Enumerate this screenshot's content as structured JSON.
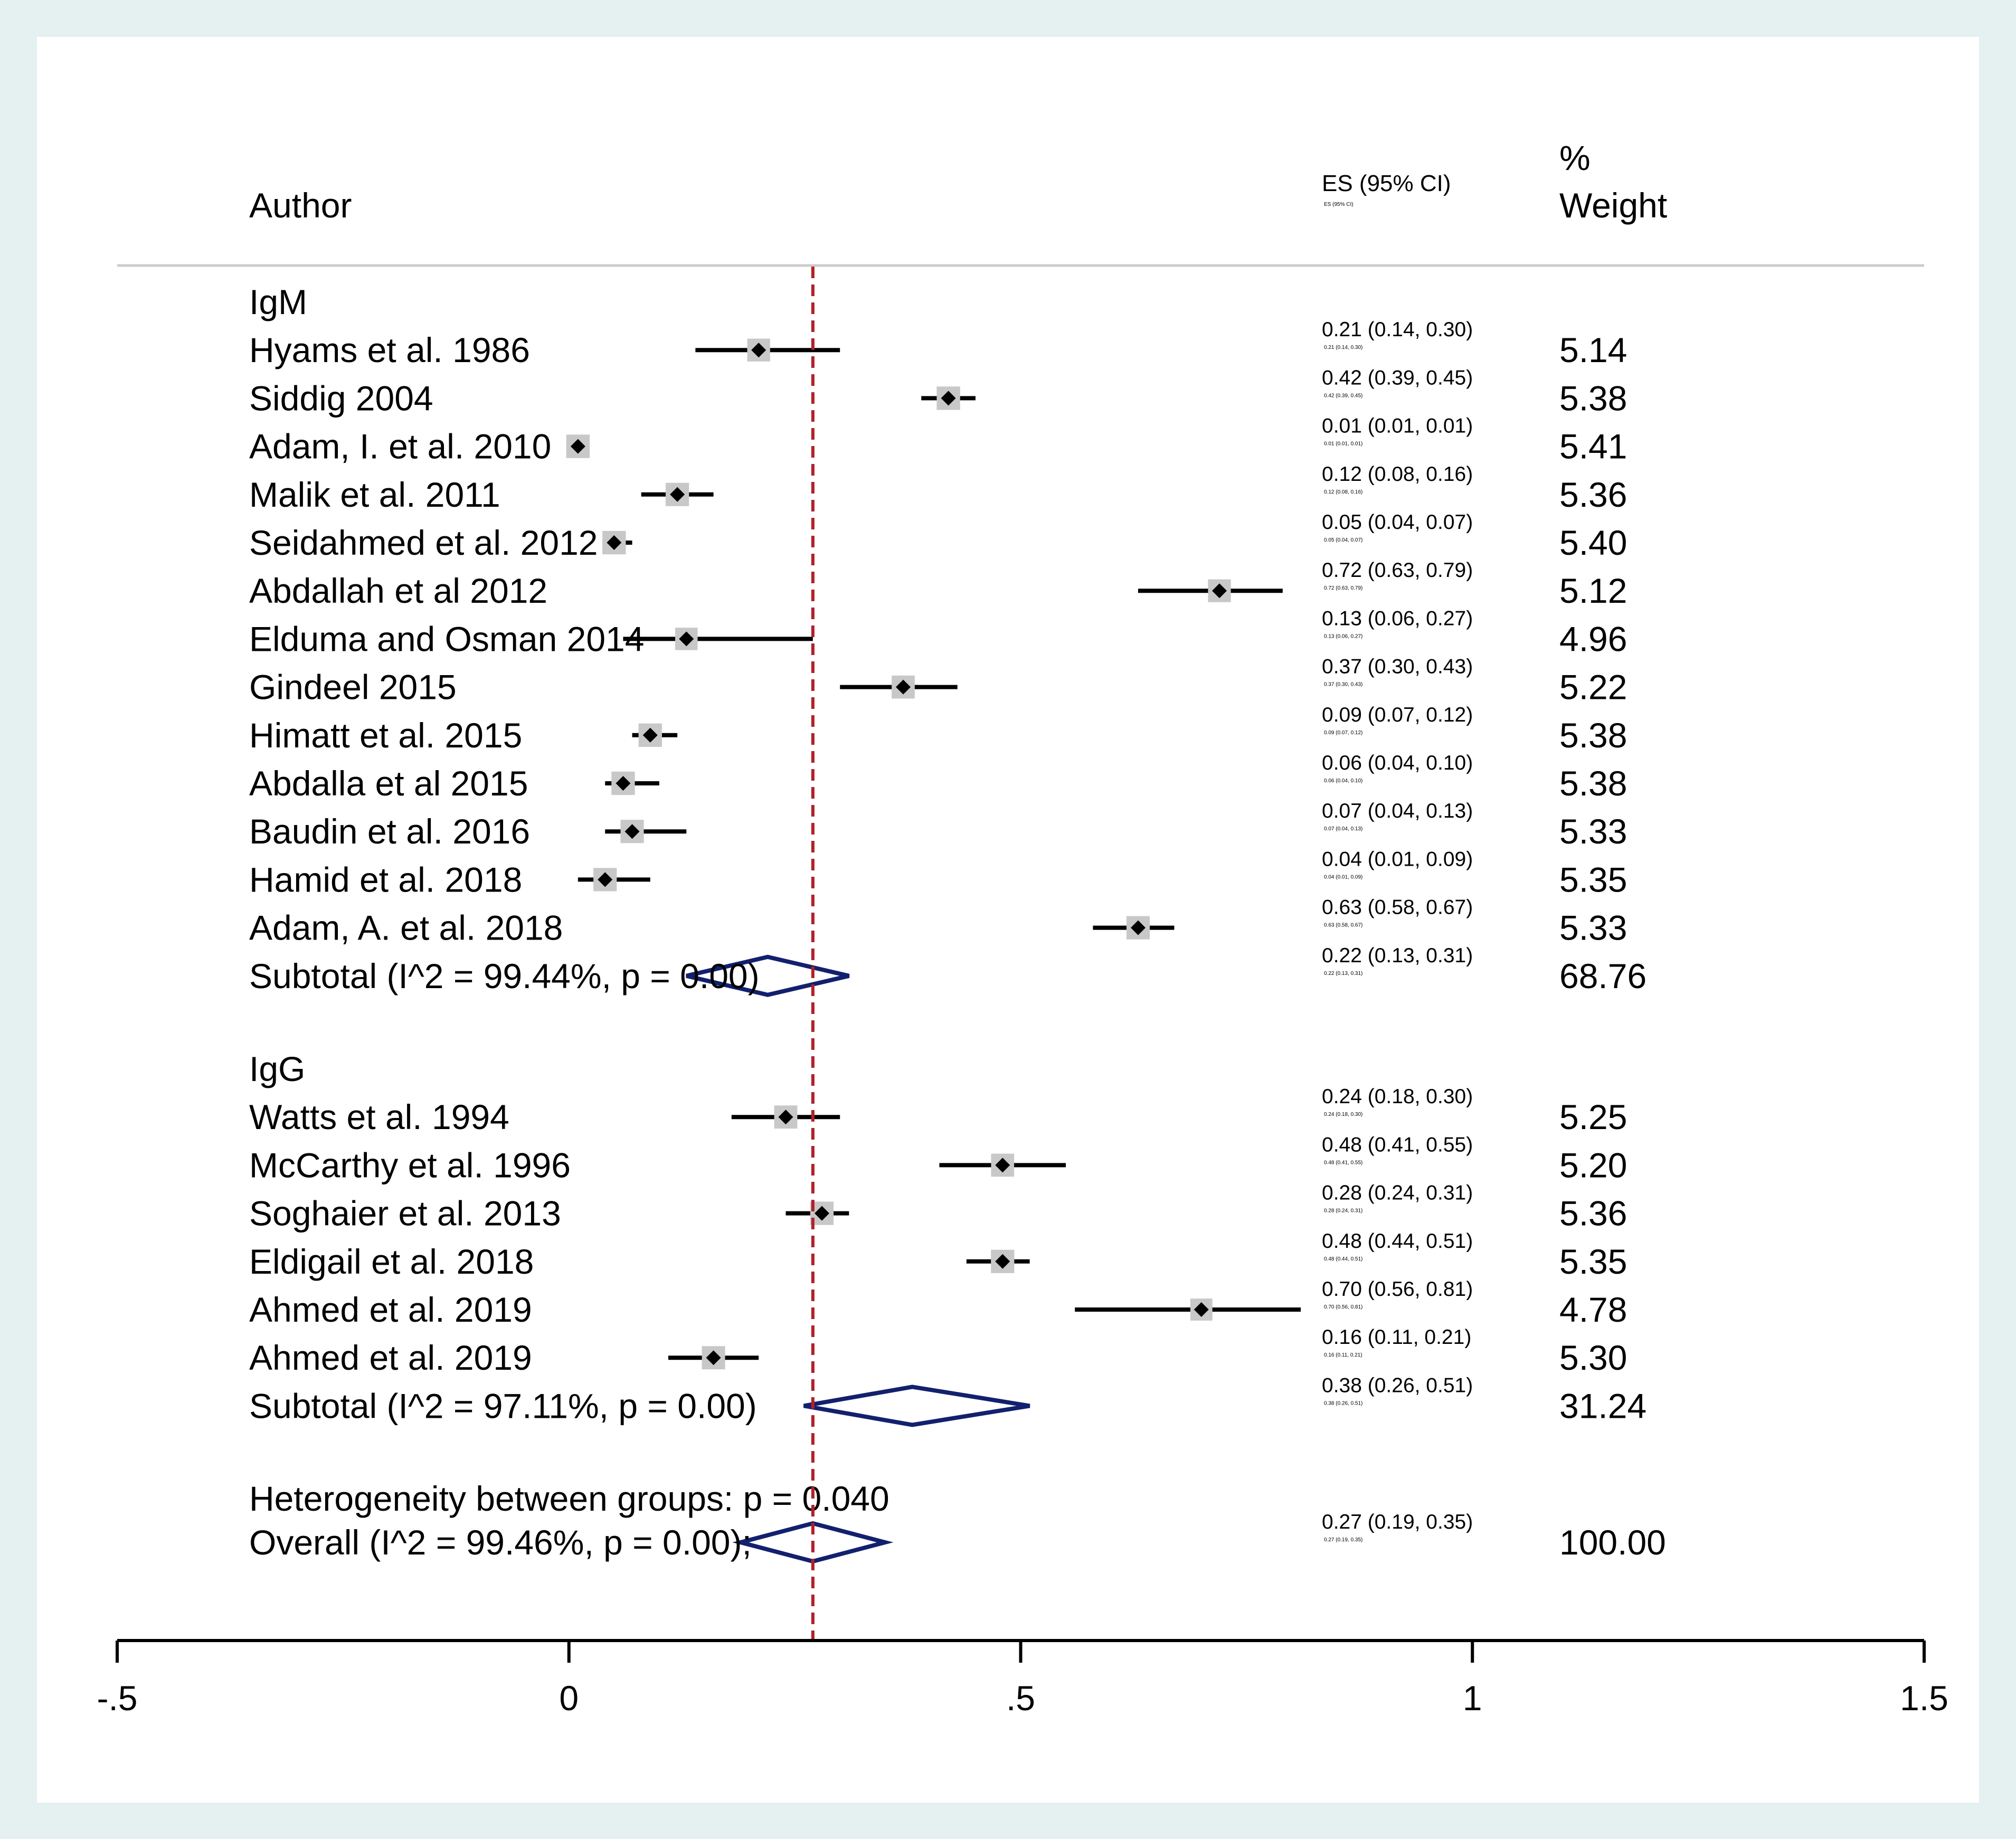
{
  "chart_data": {
    "type": "forest",
    "title": "",
    "xlabel": "",
    "ylabel": "",
    "xlim": [
      -0.5,
      1.5
    ],
    "x_ticks": [
      {
        "value": -0.5,
        "label": "-.5"
      },
      {
        "value": 0,
        "label": "0"
      },
      {
        "value": 0.5,
        "label": ".5"
      },
      {
        "value": 1,
        "label": "1"
      },
      {
        "value": 1.5,
        "label": "1.5"
      }
    ],
    "reference_line": 0.27,
    "headers": {
      "author": "Author",
      "es": "ES (95% CI)",
      "es_small": "ES (95% CI)",
      "weight_top": "%",
      "weight_bottom": "Weight"
    },
    "groups": [
      {
        "name": "IgM",
        "studies": [
          {
            "author": "Hyams et al. 1986",
            "es": 0.21,
            "lo": 0.14,
            "hi": 0.3,
            "ci_text": "0.21 (0.14, 0.30)",
            "weight": "5.14"
          },
          {
            "author": "Siddig 2004",
            "es": 0.42,
            "lo": 0.39,
            "hi": 0.45,
            "ci_text": "0.42 (0.39, 0.45)",
            "weight": "5.38"
          },
          {
            "author": "Adam, I. et al. 2010",
            "es": 0.01,
            "lo": 0.01,
            "hi": 0.01,
            "ci_text": "0.01 (0.01, 0.01)",
            "weight": "5.41"
          },
          {
            "author": "Malik et al. 2011",
            "es": 0.12,
            "lo": 0.08,
            "hi": 0.16,
            "ci_text": "0.12 (0.08, 0.16)",
            "weight": "5.36"
          },
          {
            "author": "Seidahmed et al. 2012",
            "es": 0.05,
            "lo": 0.04,
            "hi": 0.07,
            "ci_text": "0.05 (0.04, 0.07)",
            "weight": "5.40"
          },
          {
            "author": "Abdallah et al 2012",
            "es": 0.72,
            "lo": 0.63,
            "hi": 0.79,
            "ci_text": "0.72 (0.63, 0.79)",
            "weight": "5.12"
          },
          {
            "author": "Elduma and Osman 2014",
            "es": 0.13,
            "lo": 0.06,
            "hi": 0.27,
            "ci_text": "0.13 (0.06, 0.27)",
            "weight": "4.96"
          },
          {
            "author": "Gindeel 2015",
            "es": 0.37,
            "lo": 0.3,
            "hi": 0.43,
            "ci_text": "0.37 (0.30, 0.43)",
            "weight": "5.22"
          },
          {
            "author": "Himatt et al. 2015",
            "es": 0.09,
            "lo": 0.07,
            "hi": 0.12,
            "ci_text": "0.09 (0.07, 0.12)",
            "weight": "5.38"
          },
          {
            "author": "Abdalla et al 2015",
            "es": 0.06,
            "lo": 0.04,
            "hi": 0.1,
            "ci_text": "0.06 (0.04, 0.10)",
            "weight": "5.38"
          },
          {
            "author": "Baudin et al. 2016",
            "es": 0.07,
            "lo": 0.04,
            "hi": 0.13,
            "ci_text": "0.07 (0.04, 0.13)",
            "weight": "5.33"
          },
          {
            "author": "Hamid et al. 2018",
            "es": 0.04,
            "lo": 0.01,
            "hi": 0.09,
            "ci_text": "0.04 (0.01, 0.09)",
            "weight": "5.35"
          },
          {
            "author": "Adam, A. et al. 2018",
            "es": 0.63,
            "lo": 0.58,
            "hi": 0.67,
            "ci_text": "0.63 (0.58, 0.67)",
            "weight": "5.33"
          }
        ],
        "subtotal": {
          "label": "Subtotal  (I^2 = 99.44%, p = 0.00)",
          "es": 0.22,
          "lo": 0.13,
          "hi": 0.31,
          "ci_text": "0.22 (0.13, 0.31)",
          "weight": "68.76"
        }
      },
      {
        "name": "IgG",
        "studies": [
          {
            "author": "Watts et al. 1994",
            "es": 0.24,
            "lo": 0.18,
            "hi": 0.3,
            "ci_text": "0.24 (0.18, 0.30)",
            "weight": "5.25"
          },
          {
            "author": "McCarthy et al. 1996",
            "es": 0.48,
            "lo": 0.41,
            "hi": 0.55,
            "ci_text": "0.48 (0.41, 0.55)",
            "weight": "5.20"
          },
          {
            "author": "Soghaier et al. 2013",
            "es": 0.28,
            "lo": 0.24,
            "hi": 0.31,
            "ci_text": "0.28 (0.24, 0.31)",
            "weight": "5.36"
          },
          {
            "author": "Eldigail et al. 2018",
            "es": 0.48,
            "lo": 0.44,
            "hi": 0.51,
            "ci_text": "0.48 (0.44, 0.51)",
            "weight": "5.35"
          },
          {
            "author": "Ahmed et al. 2019",
            "es": 0.7,
            "lo": 0.56,
            "hi": 0.81,
            "ci_text": "0.70 (0.56, 0.81)",
            "weight": "4.78"
          },
          {
            "author": "Ahmed et al. 2019",
            "es": 0.16,
            "lo": 0.11,
            "hi": 0.21,
            "ci_text": "0.16 (0.11, 0.21)",
            "weight": "5.30"
          }
        ],
        "subtotal": {
          "label": "Subtotal  (I^2 = 97.11%, p = 0.00)",
          "es": 0.38,
          "lo": 0.26,
          "hi": 0.51,
          "ci_text": "0.38 (0.26, 0.51)",
          "weight": "31.24"
        }
      }
    ],
    "heterogeneity": "Heterogeneity between groups: p = 0.040",
    "overall": {
      "label": "Overall  (I^2 = 99.46%, p = 0.00);",
      "es": 0.27,
      "lo": 0.19,
      "hi": 0.35,
      "ci_text": "0.27 (0.19, 0.35)",
      "weight": "100.00"
    },
    "colors": {
      "outer_bg": "#e5f1f1",
      "panel_bg": "#ffffff",
      "ref_line": "#b22028",
      "diamond": "#12206e",
      "weight_box": "#c8c8c8",
      "marker": "#000000",
      "separator": "#cccccc"
    }
  }
}
